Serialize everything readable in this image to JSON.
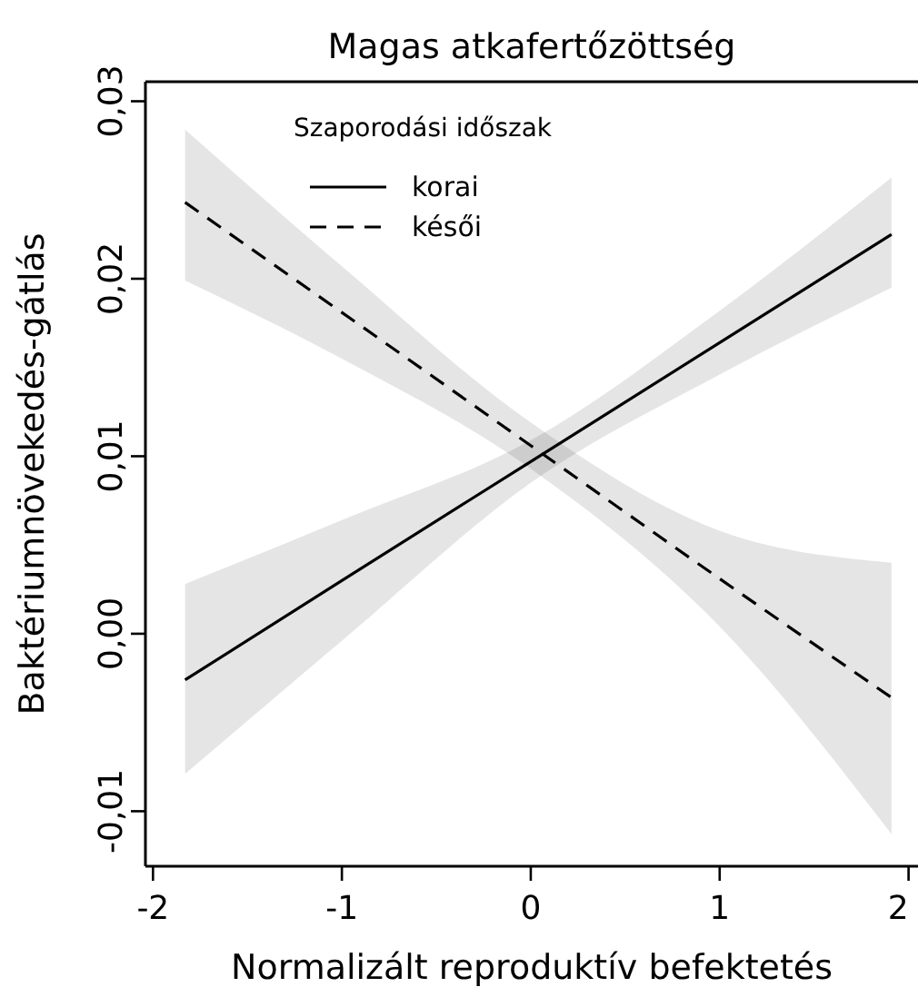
{
  "chart_data": {
    "type": "line",
    "title": "Magas atkafertőzöttség",
    "xlabel": "Normalizált reproduktív befektetés",
    "ylabel": "Baktériumnövekedés-gátlás",
    "legend_title": "Szaporodási időszak",
    "x": [
      -1.83,
      -1,
      0,
      1,
      1.91
    ],
    "series": [
      {
        "name": "korai",
        "color": "#000000",
        "line_style": "solid",
        "values": [
          -0.0026,
          0.003,
          0.0097,
          0.0164,
          0.0225
        ],
        "lower": [
          -0.0079,
          -0.0004,
          0.0085,
          0.0146,
          0.0195
        ],
        "upper": [
          0.0028,
          0.0064,
          0.0109,
          0.0182,
          0.0257
        ]
      },
      {
        "name": "késői",
        "color": "#000000",
        "line_style": "dashed",
        "values": [
          0.0243,
          0.0181,
          0.0106,
          0.0031,
          -0.0036
        ],
        "lower": [
          0.0199,
          0.0155,
          0.0093,
          0.0004,
          -0.0113
        ],
        "upper": [
          0.0284,
          0.0207,
          0.0119,
          0.0058,
          0.004
        ]
      }
    ],
    "xlim": [
      -2.04,
      2.05
    ],
    "xticks": [
      {
        "value": -2,
        "label": "-2"
      },
      {
        "value": -1,
        "label": "-1"
      },
      0,
      1,
      2
    ],
    "ylim": [
      -0.0131,
      0.0311
    ],
    "yticks": [
      {
        "value": -0.01,
        "label": "-0,01"
      },
      {
        "value": 0,
        "label": "0,00"
      },
      {
        "value": 0.01,
        "label": "0,01"
      },
      {
        "value": 0.02,
        "label": "0,02"
      },
      {
        "value": 0.03,
        "label": "0,03"
      }
    ],
    "legend": "top",
    "grid": false
  }
}
